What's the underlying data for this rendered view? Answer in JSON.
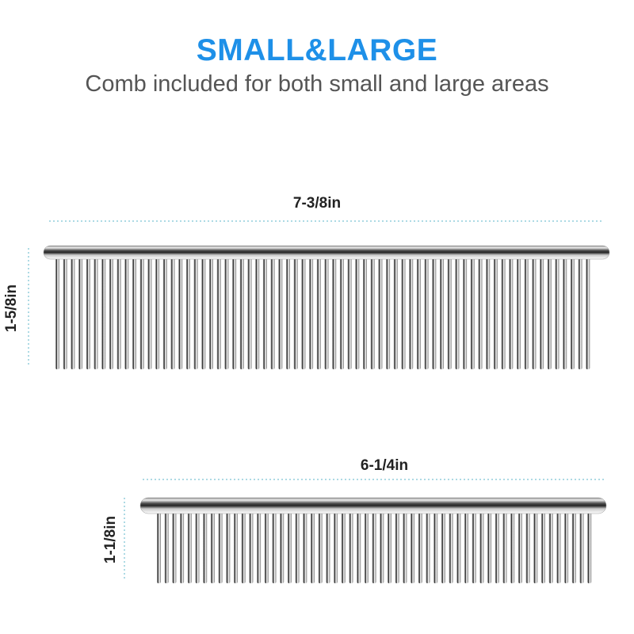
{
  "header": {
    "title": "SMALL&LARGE",
    "subtitle": "Comb included for both small and large areas"
  },
  "large_comb": {
    "length_label": "7-3/8in",
    "height_label": "1-5/8in"
  },
  "small_comb": {
    "length_label": "6-1/4in",
    "height_label": "1-1/8in"
  },
  "colors": {
    "accent": "#1e90e8",
    "guide": "#5bb5c8",
    "text": "#555555"
  }
}
